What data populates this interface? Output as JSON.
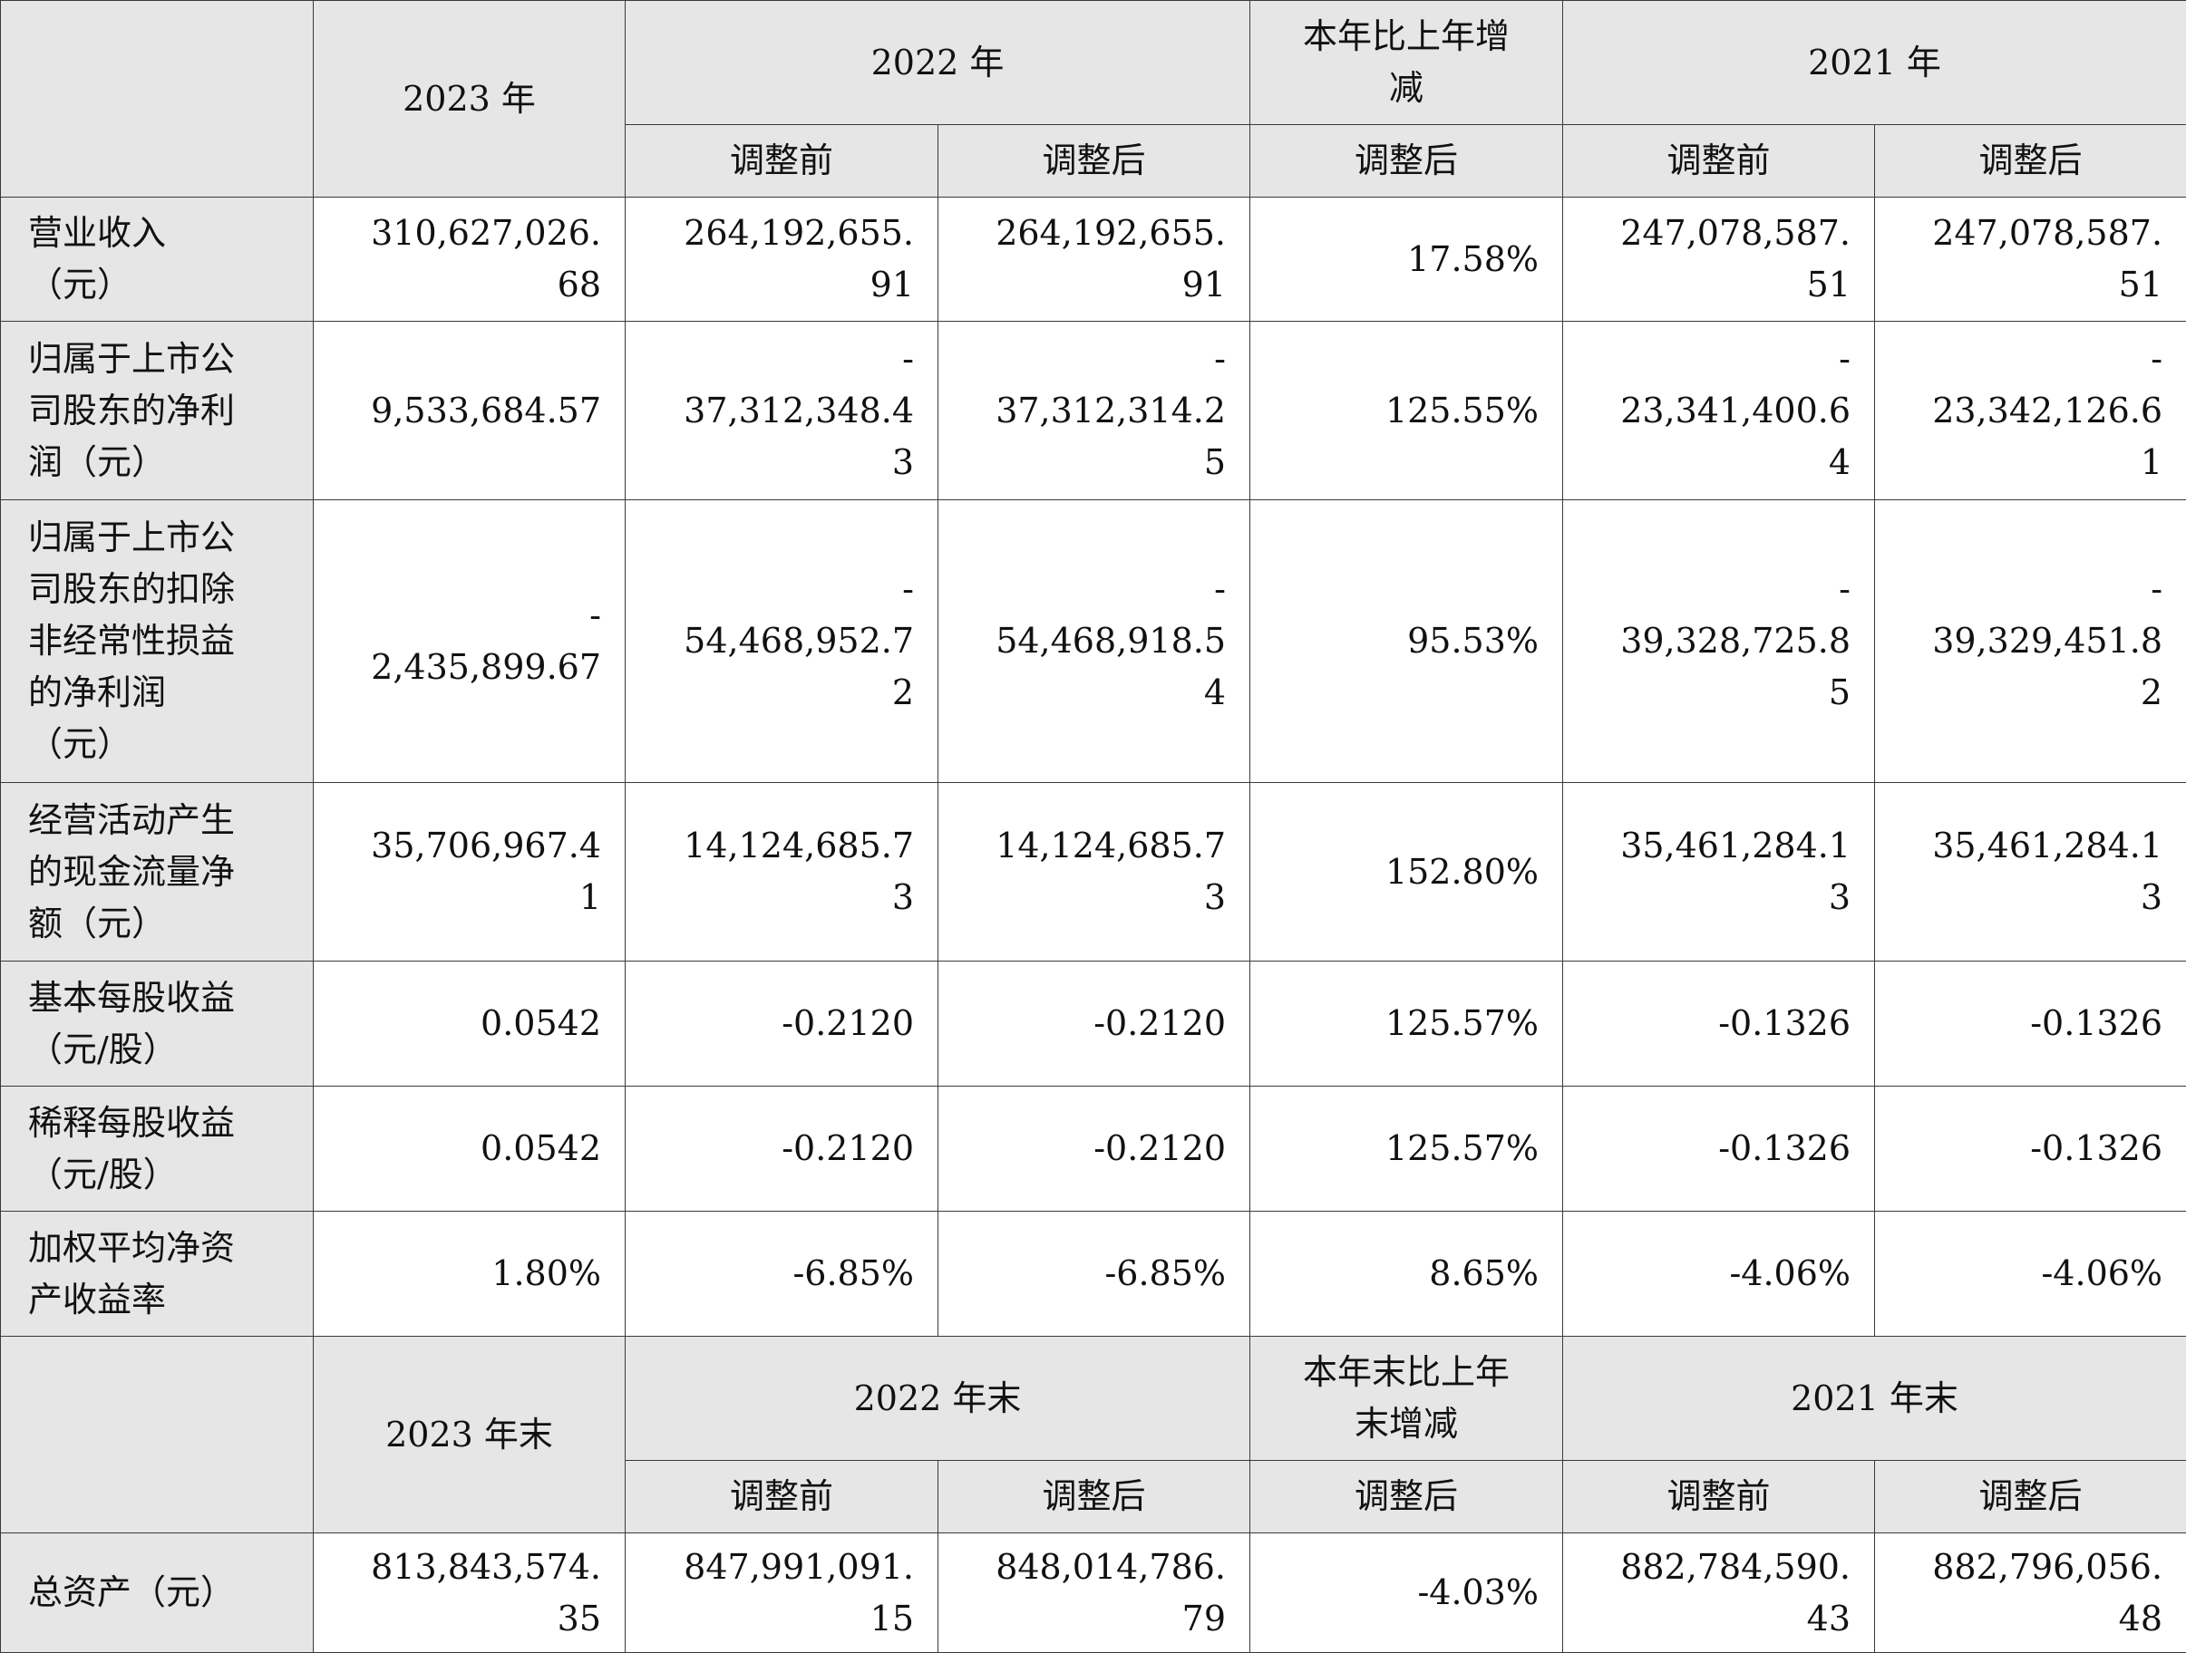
{
  "colors": {
    "header_bg": "#e6e6e6",
    "cell_bg": "#ffffff",
    "border": "#3a3a3a"
  },
  "section1": {
    "header": {
      "y2023": "2023 年",
      "y2022": "2022 年",
      "change": "本年比上年增\n减",
      "y2021": "2021 年",
      "sub": [
        "调整前",
        "调整后",
        "调整后",
        "调整前",
        "调整后"
      ]
    },
    "rows": [
      {
        "label": "营业收入\n（元）",
        "values": [
          "310,627,026.\n68",
          "264,192,655.\n91",
          "264,192,655.\n91",
          "17.58%",
          "247,078,587.\n51",
          "247,078,587.\n51"
        ]
      },
      {
        "label": "归属于上市公\n司股东的净利\n润（元）",
        "values": [
          "9,533,684.57",
          "-\n37,312,348.4\n3",
          "-\n37,312,314.2\n5",
          "125.55%",
          "-\n23,341,400.6\n4",
          "-\n23,342,126.6\n1"
        ]
      },
      {
        "label": "归属于上市公\n司股东的扣除\n非经常性损益\n的净利润\n（元）",
        "values": [
          "-\n2,435,899.67",
          "-\n54,468,952.7\n2",
          "-\n54,468,918.5\n4",
          "95.53%",
          "-\n39,328,725.8\n5",
          "-\n39,329,451.8\n2"
        ]
      },
      {
        "label": "经营活动产生\n的现金流量净\n额（元）",
        "values": [
          "35,706,967.4\n1",
          "14,124,685.7\n3",
          "14,124,685.7\n3",
          "152.80%",
          "35,461,284.1\n3",
          "35,461,284.1\n3"
        ]
      },
      {
        "label": "基本每股收益\n（元/股）",
        "values": [
          "0.0542",
          "-0.2120",
          "-0.2120",
          "125.57%",
          "-0.1326",
          "-0.1326"
        ]
      },
      {
        "label": "稀释每股收益\n（元/股）",
        "values": [
          "0.0542",
          "-0.2120",
          "-0.2120",
          "125.57%",
          "-0.1326",
          "-0.1326"
        ]
      },
      {
        "label": "加权平均净资\n产收益率",
        "values": [
          "1.80%",
          "-6.85%",
          "-6.85%",
          "8.65%",
          "-4.06%",
          "-4.06%"
        ]
      }
    ]
  },
  "section2": {
    "header": {
      "y2023": "2023 年末",
      "y2022": "2022 年末",
      "change": "本年末比上年\n末增减",
      "y2021": "2021 年末",
      "sub": [
        "调整前",
        "调整后",
        "调整后",
        "调整前",
        "调整后"
      ]
    },
    "rows": [
      {
        "label": "总资产（元）",
        "values": [
          "813,843,574.\n35",
          "847,991,091.\n15",
          "848,014,786.\n79",
          "-4.03%",
          "882,784,590.\n43",
          "882,796,056.\n48"
        ]
      }
    ]
  }
}
